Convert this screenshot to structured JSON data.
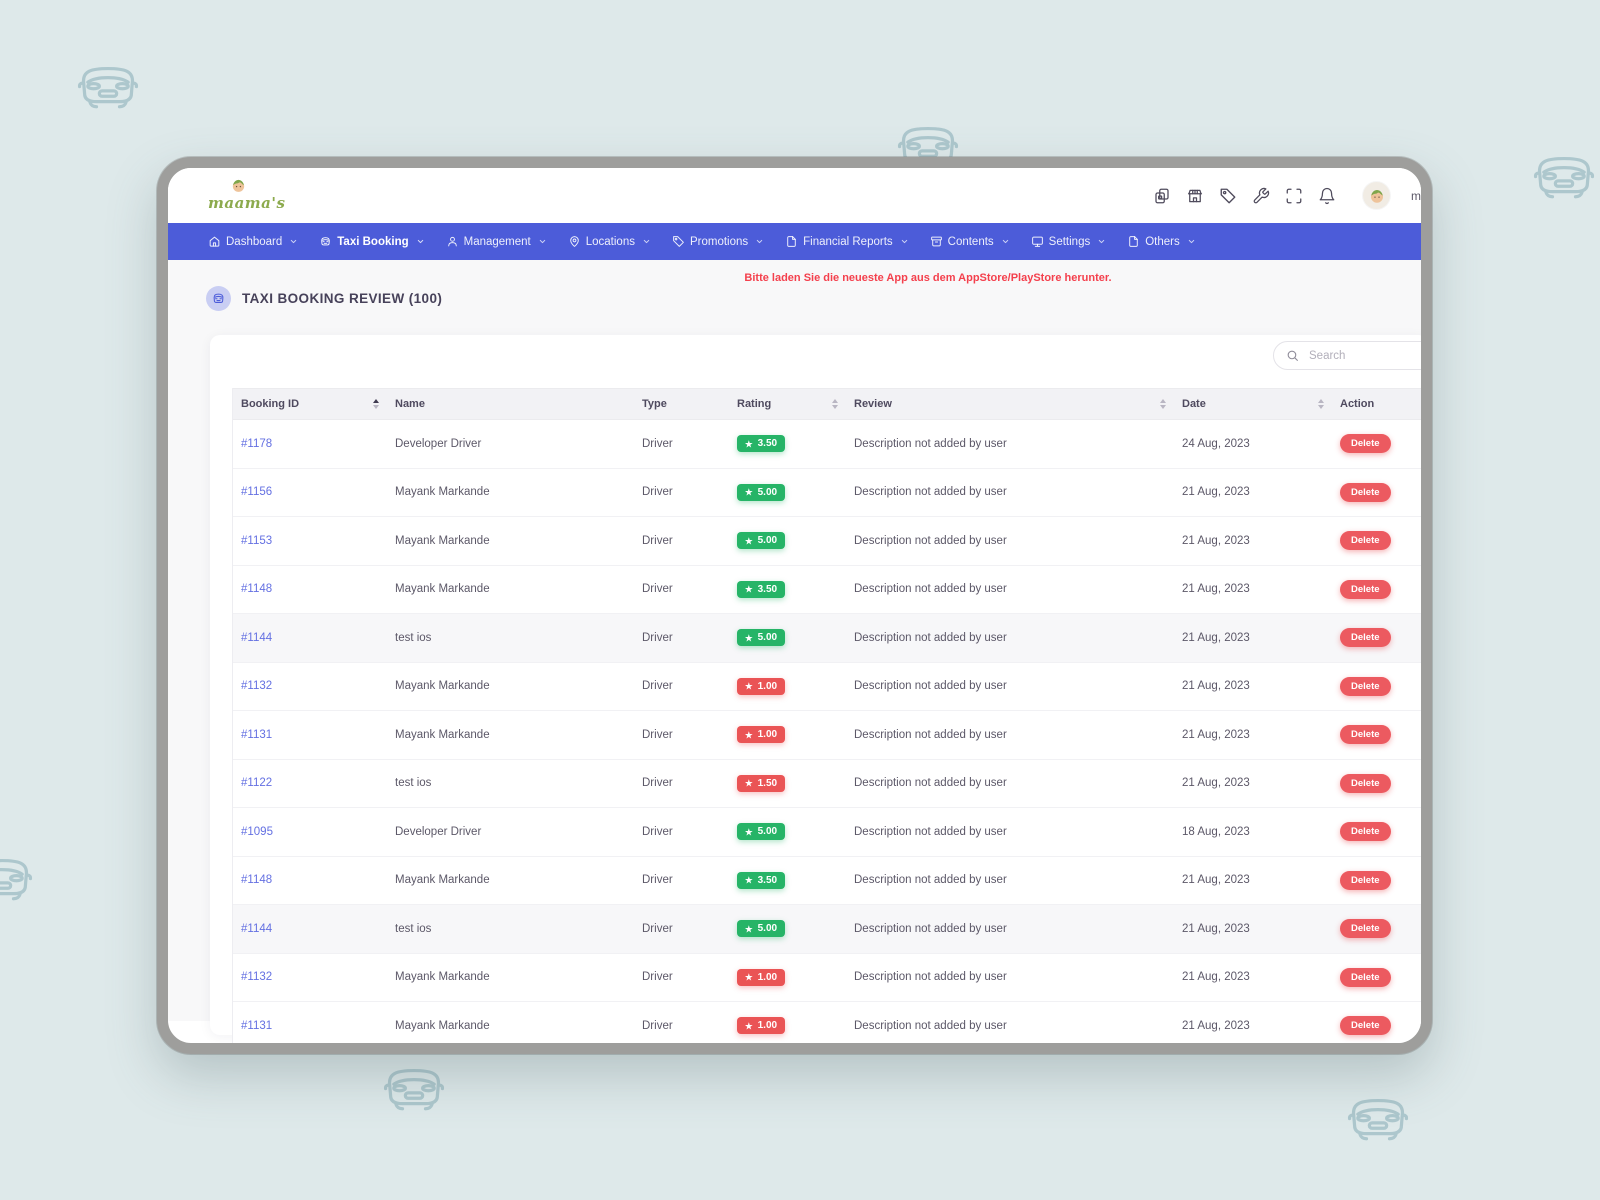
{
  "colors": {
    "navbar_blue": "#4c5cd9",
    "notice_red": "#f4404d",
    "badge_green": "#26b467",
    "badge_red": "#ea5455",
    "delete_red": "#ec5a60",
    "link_purple": "#6470e2"
  },
  "header": {
    "logo_text": "maama's",
    "profile_label": "m",
    "icons": [
      "copy-icon",
      "store-icon",
      "tag-icon",
      "wrench-icon",
      "fullscreen-icon",
      "bell-icon"
    ]
  },
  "navbar": {
    "items": [
      {
        "label": "Dashboard",
        "icon": "home-icon",
        "active": false
      },
      {
        "label": "Taxi Booking",
        "icon": "taxi-icon",
        "active": true
      },
      {
        "label": "Management",
        "icon": "user-icon",
        "active": false
      },
      {
        "label": "Locations",
        "icon": "map-pin-icon",
        "active": false
      },
      {
        "label": "Promotions",
        "icon": "tag-icon",
        "active": false
      },
      {
        "label": "Financial Reports",
        "icon": "file-icon",
        "active": false
      },
      {
        "label": "Contents",
        "icon": "archive-icon",
        "active": false
      },
      {
        "label": "Settings",
        "icon": "monitor-icon",
        "active": false
      },
      {
        "label": "Others",
        "icon": "file-icon",
        "active": false
      }
    ]
  },
  "notice": "Bitte laden Sie die neueste App aus dem AppStore/PlayStore herunter.",
  "page_title": "TAXI BOOKING REVIEW (100)",
  "search": {
    "placeholder": "Search"
  },
  "table": {
    "columns": [
      {
        "label": "Booking ID",
        "sort": "asc"
      },
      {
        "label": "Name",
        "sort": "none"
      },
      {
        "label": "Type",
        "sort": "none"
      },
      {
        "label": "Rating",
        "sort": "both"
      },
      {
        "label": "Review",
        "sort": "both"
      },
      {
        "label": "Date",
        "sort": "both"
      },
      {
        "label": "Action",
        "sort": "none"
      }
    ],
    "rows": [
      {
        "id": "#1178",
        "name": "Developer Driver",
        "type": "Driver",
        "rating": "3.50",
        "rating_color": "green",
        "review": "Description not added by user",
        "date": "24 Aug, 2023",
        "action": "Delete",
        "striped": false
      },
      {
        "id": "#1156",
        "name": "Mayank Markande",
        "type": "Driver",
        "rating": "5.00",
        "rating_color": "green",
        "review": "Description not added by user",
        "date": "21 Aug, 2023",
        "action": "Delete",
        "striped": false
      },
      {
        "id": "#1153",
        "name": "Mayank Markande",
        "type": "Driver",
        "rating": "5.00",
        "rating_color": "green",
        "review": "Description not added by user",
        "date": "21 Aug, 2023",
        "action": "Delete",
        "striped": false
      },
      {
        "id": "#1148",
        "name": "Mayank Markande",
        "type": "Driver",
        "rating": "3.50",
        "rating_color": "green",
        "review": "Description not added by user",
        "date": "21 Aug, 2023",
        "action": "Delete",
        "striped": false
      },
      {
        "id": "#1144",
        "name": "test ios",
        "type": "Driver",
        "rating": "5.00",
        "rating_color": "green",
        "review": "Description not added by user",
        "date": "21 Aug, 2023",
        "action": "Delete",
        "striped": true
      },
      {
        "id": "#1132",
        "name": "Mayank Markande",
        "type": "Driver",
        "rating": "1.00",
        "rating_color": "red",
        "review": "Description not added by user",
        "date": "21 Aug, 2023",
        "action": "Delete",
        "striped": false
      },
      {
        "id": "#1131",
        "name": "Mayank Markande",
        "type": "Driver",
        "rating": "1.00",
        "rating_color": "red",
        "review": "Description not added by user",
        "date": "21 Aug, 2023",
        "action": "Delete",
        "striped": false
      },
      {
        "id": "#1122",
        "name": "test ios",
        "type": "Driver",
        "rating": "1.50",
        "rating_color": "red",
        "review": "Description not added by user",
        "date": "21 Aug, 2023",
        "action": "Delete",
        "striped": false
      },
      {
        "id": "#1095",
        "name": "Developer Driver",
        "type": "Driver",
        "rating": "5.00",
        "rating_color": "green",
        "review": "Description not added by user",
        "date": "18 Aug, 2023",
        "action": "Delete",
        "striped": false
      },
      {
        "id": "#1148",
        "name": "Mayank Markande",
        "type": "Driver",
        "rating": "3.50",
        "rating_color": "green",
        "review": "Description not added by user",
        "date": "21 Aug, 2023",
        "action": "Delete",
        "striped": false
      },
      {
        "id": "#1144",
        "name": "test ios",
        "type": "Driver",
        "rating": "5.00",
        "rating_color": "green",
        "review": "Description not added by user",
        "date": "21 Aug, 2023",
        "action": "Delete",
        "striped": true
      },
      {
        "id": "#1132",
        "name": "Mayank Markande",
        "type": "Driver",
        "rating": "1.00",
        "rating_color": "red",
        "review": "Description not added by user",
        "date": "21 Aug, 2023",
        "action": "Delete",
        "striped": false
      },
      {
        "id": "#1131",
        "name": "Mayank Markande",
        "type": "Driver",
        "rating": "1.00",
        "rating_color": "red",
        "review": "Description not added by user",
        "date": "21 Aug, 2023",
        "action": "Delete",
        "striped": false
      }
    ]
  }
}
